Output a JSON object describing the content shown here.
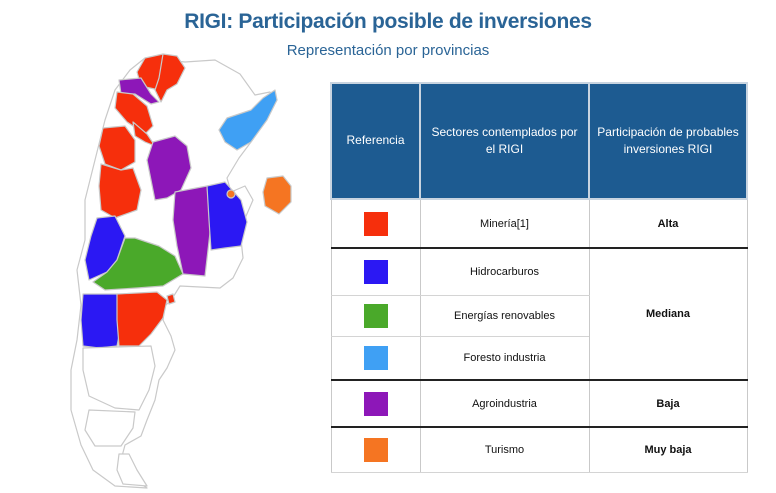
{
  "title": "RIGI: Participación posible de inversiones",
  "subtitle": "Representación por provincias",
  "table": {
    "headers": [
      "Referencia",
      "Sectores contemplados por el RIGI",
      "Participación de probables inversiones RIGI"
    ],
    "rows": [
      {
        "sector": "Minería[1]",
        "color": "#f62f0c",
        "level": "Alta"
      },
      {
        "sector": "Hidrocarburos",
        "color": "#2b18f3",
        "level": "Mediana"
      },
      {
        "sector": "Energías renovables",
        "color": "#4aa92a",
        "level": "Mediana"
      },
      {
        "sector": "Foresto industria",
        "color": "#3fa0f4",
        "level": "Mediana"
      },
      {
        "sector": "Agroindustria",
        "color": "#8d17b8",
        "level": "Baja"
      },
      {
        "sector": "Turismo",
        "color": "#f57522",
        "level": "Muy baja"
      }
    ]
  },
  "map_colors": {
    "border": "#c9c9c9",
    "empty": "#ffffff"
  }
}
